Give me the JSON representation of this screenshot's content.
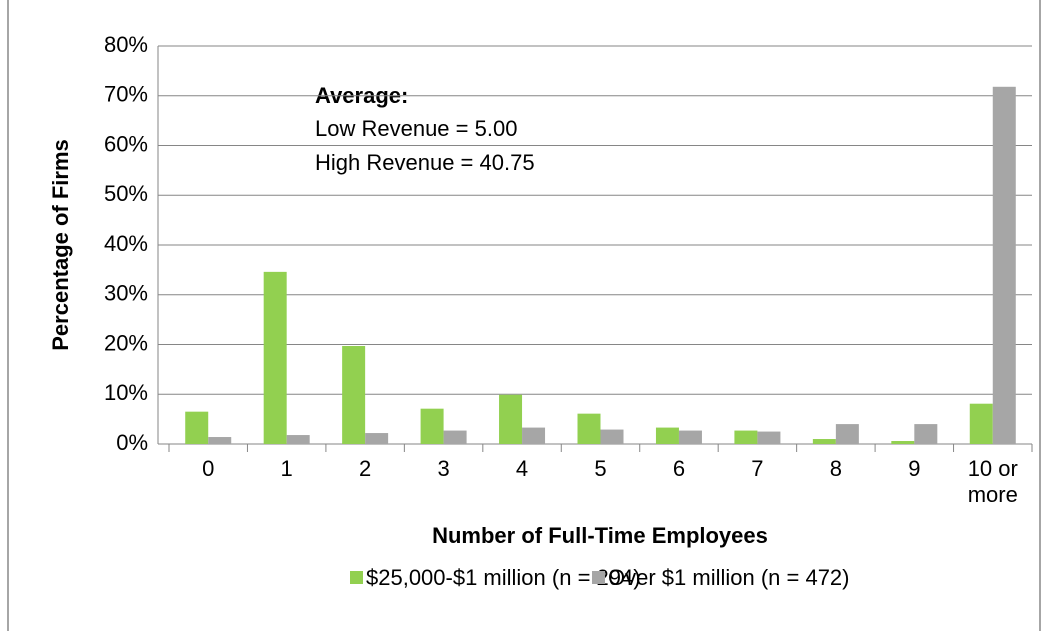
{
  "chart_data": {
    "type": "bar",
    "x_label": "Number of Full-Time Employees",
    "y_label": "Percentage of Firms",
    "annotations": [
      "Average:",
      "Low Revenue = 5.00",
      "High Revenue = 40.75"
    ],
    "categories": [
      "0",
      "1",
      "2",
      "3",
      "4",
      "5",
      "6",
      "7",
      "8",
      "9",
      "10 or more"
    ],
    "series": [
      {
        "name": "$25,000-$1 million (n = 294)",
        "color": "#92d050",
        "values": [
          6.5,
          34.6,
          19.7,
          7.1,
          9.9,
          6.1,
          3.3,
          2.7,
          1.0,
          0.6,
          8.1
        ]
      },
      {
        "name": "Over $1 million (n = 472)",
        "color": "#a6a6a6",
        "values": [
          1.4,
          1.8,
          2.2,
          2.7,
          3.3,
          2.9,
          2.7,
          2.5,
          4.0,
          4.0,
          71.8
        ]
      }
    ],
    "ylim": [
      0,
      80
    ],
    "yticks": [
      {
        "value": 0,
        "label": "0%"
      },
      {
        "value": 10,
        "label": "10%"
      },
      {
        "value": 20,
        "label": "20%"
      },
      {
        "value": 30,
        "label": "30%"
      },
      {
        "value": 40,
        "label": "40%"
      },
      {
        "value": 50,
        "label": "50%"
      },
      {
        "value": 60,
        "label": "60%"
      },
      {
        "value": 70,
        "label": "70%"
      },
      {
        "value": 80,
        "label": "80%"
      }
    ],
    "grid": true,
    "legend": "bottom"
  }
}
